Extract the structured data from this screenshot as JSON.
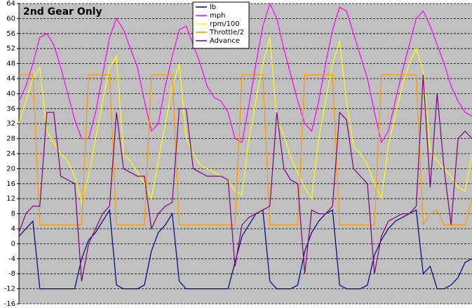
{
  "chart_data": {
    "type": "line",
    "title": "2nd Gear Only",
    "ylim": [
      -16,
      64
    ],
    "yticks": [
      -16,
      -12,
      -8,
      -4,
      0,
      4,
      8,
      12,
      16,
      20,
      24,
      28,
      32,
      36,
      40,
      44,
      48,
      52,
      56,
      60,
      64
    ],
    "grid": true,
    "legend_position": "top-center",
    "background": "#c0c0c0",
    "series": [
      {
        "name": "lb",
        "color": "#000080",
        "values": [
          2,
          4,
          6,
          -12,
          -12,
          -12,
          -12,
          -12,
          -12,
          -4,
          1,
          3,
          6,
          9,
          -11,
          -12,
          -12,
          -12,
          -11,
          -2,
          3,
          5,
          8,
          -10,
          -12,
          -12,
          -12,
          -12,
          -12,
          -12,
          -12,
          -5,
          2,
          5,
          8,
          9,
          -10,
          -12,
          -12,
          -12,
          -11,
          -2,
          3,
          6,
          8,
          9,
          -11,
          -12,
          -12,
          -12,
          -11,
          -3,
          1,
          4,
          6,
          7,
          8,
          9,
          -8,
          -6,
          -12,
          -12,
          -11,
          -9,
          -5,
          -4
        ]
      },
      {
        "name": "mph",
        "color": "#ff00ff",
        "values": [
          38,
          42,
          48,
          55,
          56,
          53,
          47,
          40,
          33,
          28,
          28,
          35,
          45,
          55,
          60,
          57,
          52,
          47,
          38,
          30,
          32,
          42,
          50,
          57,
          58,
          53,
          48,
          42,
          39,
          38,
          35,
          28,
          27,
          37,
          48,
          58,
          64,
          60,
          52,
          45,
          38,
          32,
          30,
          38,
          48,
          57,
          63,
          62,
          56,
          50,
          44,
          35,
          27,
          30,
          38,
          46,
          53,
          60,
          62,
          58,
          53,
          48,
          42,
          38,
          35,
          34
        ]
      },
      {
        "name": "rpm/100",
        "color": "#ffff00",
        "values": [
          32,
          38,
          44,
          47,
          30,
          27,
          24,
          22,
          18,
          11,
          18,
          28,
          38,
          47,
          50,
          24,
          22,
          19,
          16,
          12,
          22,
          32,
          42,
          48,
          28,
          24,
          21,
          20,
          19,
          18,
          17,
          14,
          13,
          28,
          38,
          48,
          55,
          33,
          29,
          23,
          19,
          15,
          12,
          28,
          38,
          48,
          54,
          38,
          26,
          24,
          21,
          16,
          12,
          26,
          34,
          42,
          48,
          52,
          46,
          25,
          22,
          20,
          18,
          15,
          14,
          24
        ]
      },
      {
        "name": "Throttle/2",
        "color": "#ff9900",
        "values": [
          45,
          45,
          45,
          5,
          5,
          5,
          5,
          5,
          5,
          5,
          45,
          45,
          45,
          45,
          5,
          5,
          5,
          5,
          5,
          45,
          45,
          45,
          45,
          5,
          5,
          5,
          5,
          5,
          5,
          5,
          5,
          5,
          45,
          45,
          45,
          45,
          5,
          5,
          5,
          5,
          5,
          45,
          45,
          45,
          45,
          45,
          5,
          5,
          5,
          5,
          5,
          5,
          45,
          45,
          45,
          45,
          45,
          45,
          5,
          8,
          9,
          5,
          5,
          5,
          5,
          12
        ]
      },
      {
        "name": "Advance",
        "color": "#800080",
        "values": [
          3,
          8,
          10,
          10,
          35,
          35,
          18,
          17,
          16,
          -10,
          0,
          4,
          8,
          10,
          35,
          20,
          19,
          18,
          18,
          4,
          8,
          10,
          11,
          36,
          36,
          20,
          19,
          18,
          18,
          18,
          17,
          -6,
          5,
          7,
          8,
          9,
          10,
          35,
          20,
          17,
          16,
          -8,
          9,
          8,
          8,
          10,
          35,
          33,
          20,
          18,
          16,
          -8,
          2,
          6,
          7,
          8,
          8,
          10,
          45,
          15,
          40,
          20,
          5,
          28,
          30,
          28
        ]
      }
    ]
  }
}
